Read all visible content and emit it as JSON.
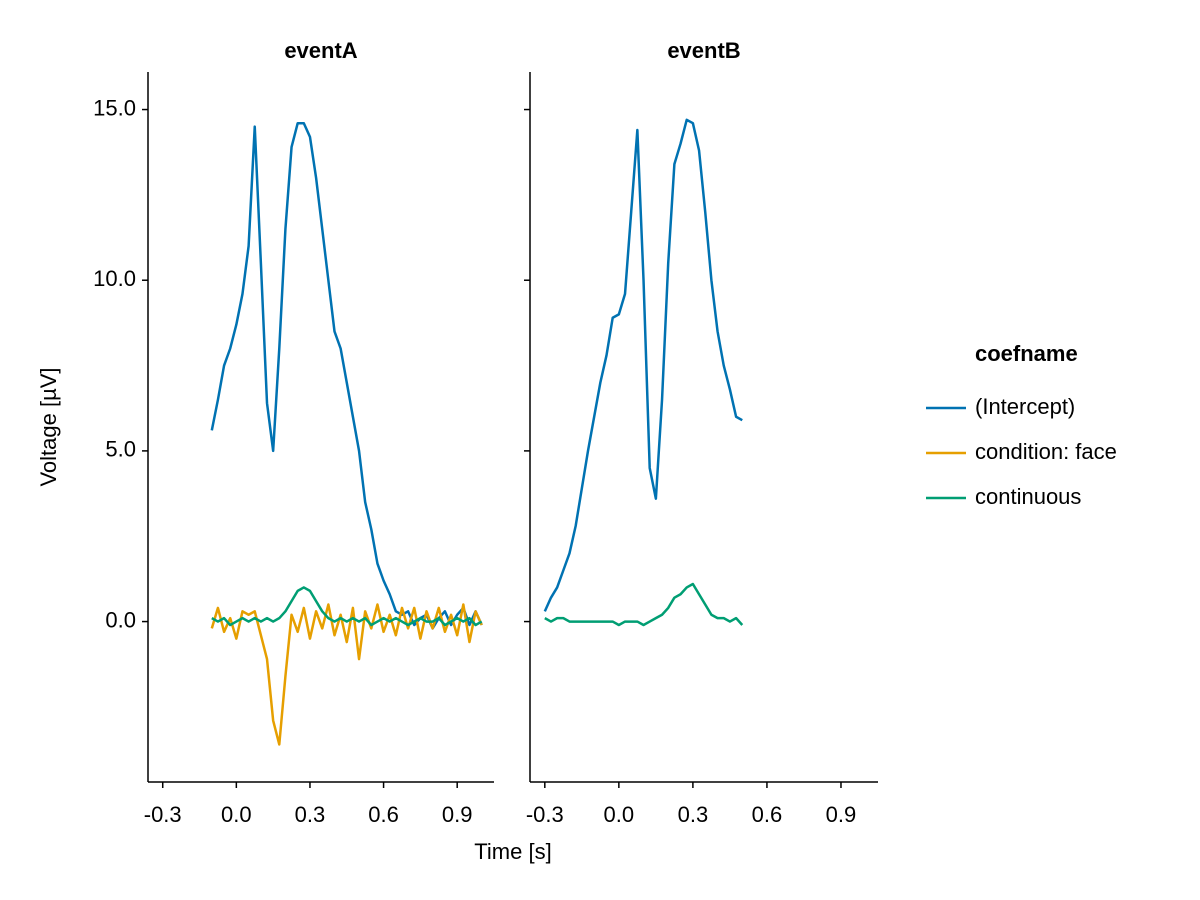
{
  "ylabel": "Voltage [µV]",
  "xlabel": "Time [s]",
  "legend_title": "coefname",
  "chart_data": [
    {
      "type": "line",
      "title": "eventA",
      "x": [
        -0.1,
        -0.075,
        -0.05,
        -0.025,
        0,
        0.025,
        0.05,
        0.075,
        0.1,
        0.125,
        0.15,
        0.175,
        0.2,
        0.225,
        0.25,
        0.275,
        0.3,
        0.325,
        0.35,
        0.375,
        0.4,
        0.425,
        0.45,
        0.475,
        0.5,
        0.525,
        0.55,
        0.575,
        0.6,
        0.625,
        0.65,
        0.675,
        0.7,
        0.725,
        0.75,
        0.775,
        0.8,
        0.825,
        0.85,
        0.875,
        0.9,
        0.925,
        0.95,
        0.975,
        1.0
      ],
      "series": [
        {
          "name": "(Intercept)",
          "color": "#0072b2",
          "values": [
            5.6,
            6.5,
            7.5,
            8.0,
            8.7,
            9.6,
            11.0,
            14.5,
            10.5,
            6.4,
            5.0,
            8.0,
            11.5,
            13.9,
            14.6,
            14.6,
            14.2,
            13.0,
            11.5,
            10.0,
            8.5,
            8.0,
            7.0,
            6.0,
            5.0,
            3.5,
            2.7,
            1.7,
            1.2,
            0.8,
            0.3,
            0.2,
            0.3,
            -0.1,
            0.1,
            0.2,
            -0.2,
            0.1,
            0.3,
            -0.1,
            0.2,
            0.4,
            -0.1,
            0.3,
            -0.1
          ]
        },
        {
          "name": "condition: face",
          "color": "#e69f00",
          "values": [
            -0.2,
            0.4,
            -0.3,
            0.1,
            -0.5,
            0.3,
            0.2,
            0.3,
            -0.4,
            -1.1,
            -2.9,
            -3.6,
            -1.6,
            0.2,
            -0.3,
            0.4,
            -0.5,
            0.3,
            -0.2,
            0.5,
            -0.4,
            0.2,
            -0.6,
            0.4,
            -1.1,
            0.3,
            -0.2,
            0.5,
            -0.3,
            0.2,
            -0.4,
            0.4,
            -0.2,
            0.4,
            -0.5,
            0.3,
            -0.2,
            0.4,
            -0.3,
            0.2,
            -0.4,
            0.5,
            -0.6,
            0.3,
            -0.1
          ]
        },
        {
          "name": "continuous",
          "color": "#009e73",
          "values": [
            0.1,
            0.0,
            0.1,
            -0.1,
            0.0,
            0.1,
            0.0,
            0.1,
            0.0,
            0.1,
            0.0,
            0.1,
            0.3,
            0.6,
            0.9,
            1.0,
            0.9,
            0.6,
            0.3,
            0.1,
            0.0,
            0.1,
            0.0,
            0.1,
            0.0,
            0.1,
            -0.1,
            0.0,
            0.1,
            0.0,
            0.1,
            0.0,
            -0.1,
            0.0,
            0.1,
            0.0,
            0.0,
            0.1,
            -0.1,
            0.0,
            0.1,
            0.0,
            0.1,
            -0.1,
            0.0
          ]
        }
      ],
      "xlim": [
        -0.36,
        1.05
      ],
      "xticks": [
        -0.3,
        {
          "value": 0,
          "label": "0.0"
        },
        0.3,
        0.6,
        0.9
      ],
      "ylim": [
        -4.7,
        16.1
      ],
      "yticks": [
        {
          "value": 0,
          "label": "0.0"
        },
        {
          "value": 5,
          "label": "5.0"
        },
        {
          "value": 10,
          "label": "10.0"
        },
        {
          "value": 15,
          "label": "15.0"
        }
      ],
      "grid": false
    },
    {
      "type": "line",
      "title": "eventB",
      "x": [
        -0.3,
        -0.275,
        -0.25,
        -0.225,
        -0.2,
        -0.175,
        -0.15,
        -0.125,
        -0.1,
        -0.075,
        -0.05,
        -0.025,
        0,
        0.025,
        0.05,
        0.075,
        0.1,
        0.125,
        0.15,
        0.175,
        0.2,
        0.225,
        0.25,
        0.275,
        0.3,
        0.325,
        0.35,
        0.375,
        0.4,
        0.425,
        0.45,
        0.475,
        0.5
      ],
      "series": [
        {
          "name": "(Intercept)",
          "color": "#0072b2",
          "values": [
            0.3,
            0.7,
            1.0,
            1.5,
            2.0,
            2.8,
            3.9,
            5.0,
            6.0,
            7.0,
            7.8,
            8.9,
            9.0,
            9.6,
            12.0,
            14.4,
            10.0,
            4.5,
            3.6,
            6.5,
            10.5,
            13.4,
            14.0,
            14.7,
            14.6,
            13.8,
            12.0,
            10.0,
            8.5,
            7.5,
            6.8,
            6.0,
            5.9
          ]
        },
        {
          "name": "continuous",
          "color": "#009e73",
          "values": [
            0.1,
            0.0,
            0.1,
            0.1,
            0.0,
            0.0,
            0.0,
            0.0,
            0.0,
            0.0,
            0.0,
            0.0,
            -0.1,
            0.0,
            0.0,
            0.0,
            -0.1,
            0.0,
            0.1,
            0.2,
            0.4,
            0.7,
            0.8,
            1.0,
            1.1,
            0.8,
            0.5,
            0.2,
            0.1,
            0.1,
            0.0,
            0.1,
            -0.1
          ]
        }
      ],
      "xlim": [
        -0.36,
        1.05
      ],
      "xticks": [
        -0.3,
        {
          "value": 0,
          "label": "0.0"
        },
        0.3,
        0.6,
        0.9
      ],
      "ylim": [
        -4.7,
        16.1
      ],
      "yticks": [
        {
          "value": 0,
          "label": "0.0"
        },
        {
          "value": 5,
          "label": "5.0"
        },
        {
          "value": 10,
          "label": "10.0"
        },
        {
          "value": 15,
          "label": "15.0"
        }
      ],
      "grid": false
    }
  ]
}
